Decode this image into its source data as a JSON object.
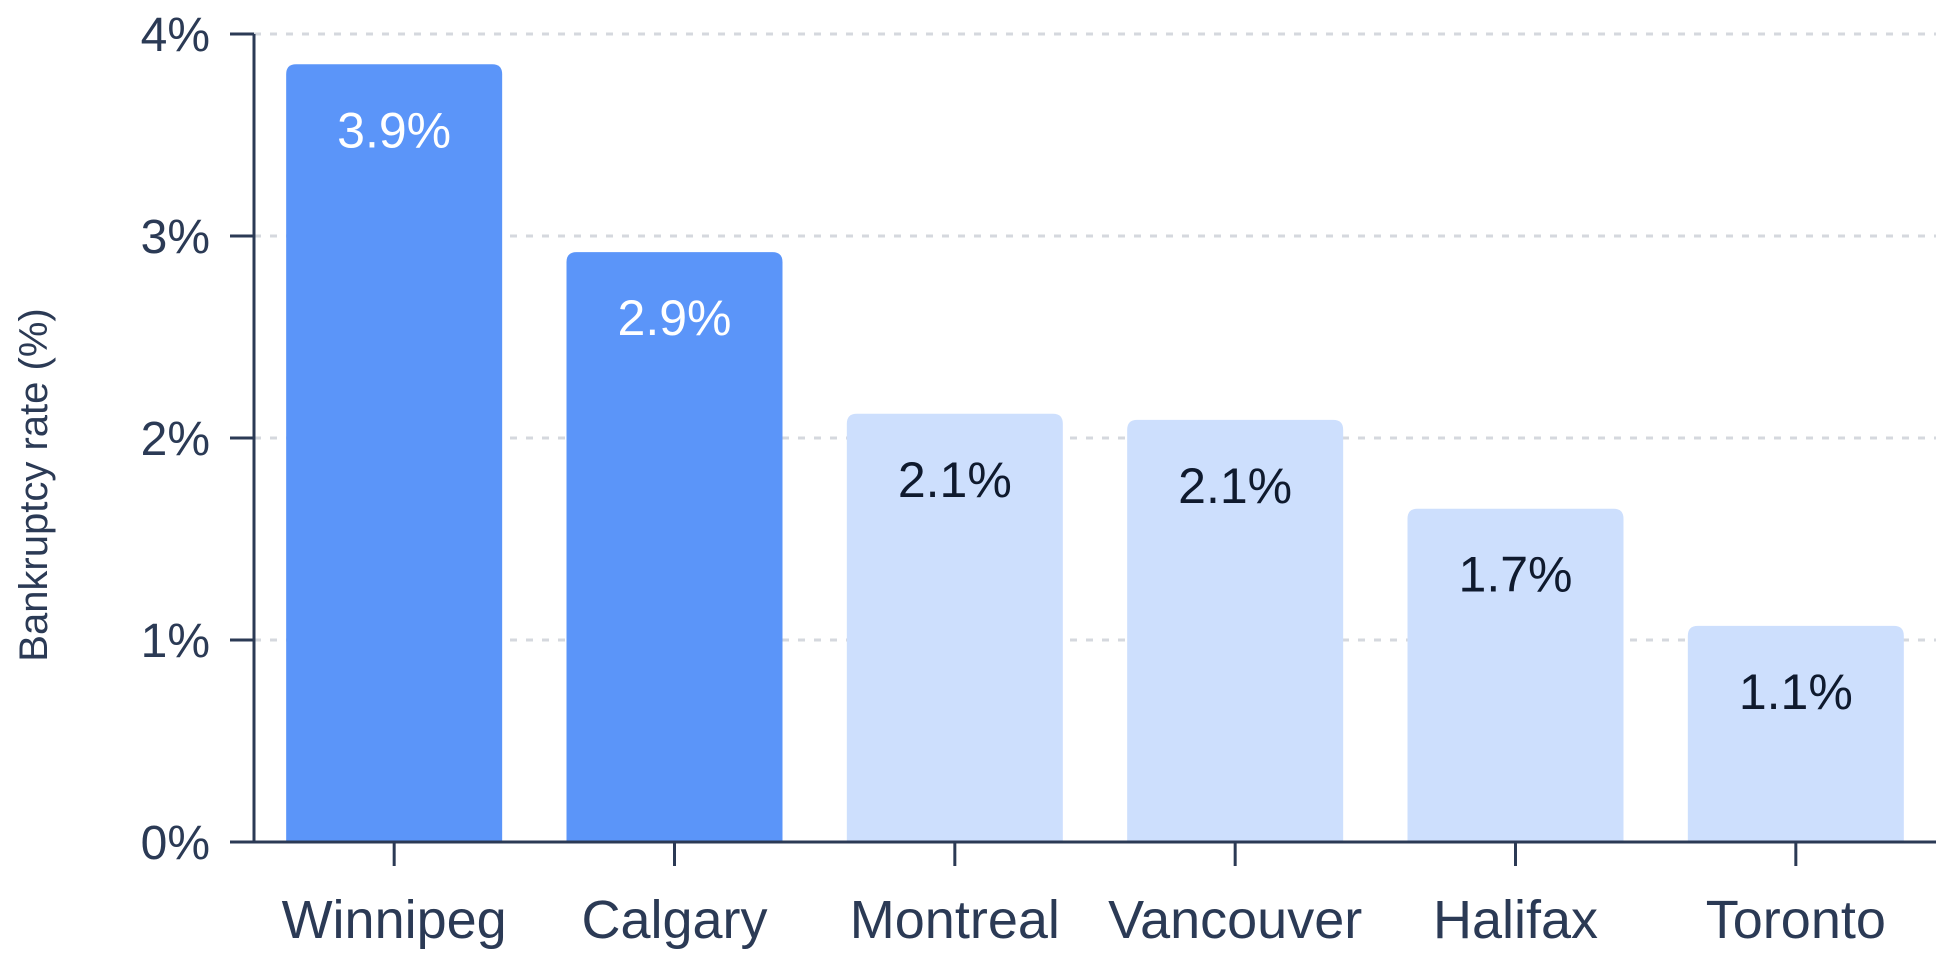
{
  "chart_data": {
    "type": "bar",
    "categories": [
      "Winnipeg",
      "Calgary",
      "Montreal",
      "Vancouver",
      "Halifax",
      "Toronto"
    ],
    "values": [
      3.85,
      2.92,
      2.12,
      2.09,
      1.65,
      1.07
    ],
    "data_labels": [
      "3.9%",
      "2.9%",
      "2.1%",
      "2.1%",
      "1.7%",
      "1.1%"
    ],
    "highlighted": [
      true,
      true,
      false,
      false,
      false,
      false
    ],
    "ylabel": "Bankruptcy rate (%)",
    "ylim": [
      0,
      4
    ],
    "yticks": [
      0,
      1,
      2,
      3,
      4
    ],
    "ytick_labels": [
      "0%",
      "1%",
      "2%",
      "3%",
      "4%"
    ],
    "grid": true,
    "colors": {
      "highlight_bar": "#5b95f9",
      "normal_bar": "#cddffd",
      "highlight_label": "#ffffff",
      "normal_label": "#0f1a2e",
      "axis": "#2b3a55",
      "grid": "#d5d8de"
    }
  }
}
